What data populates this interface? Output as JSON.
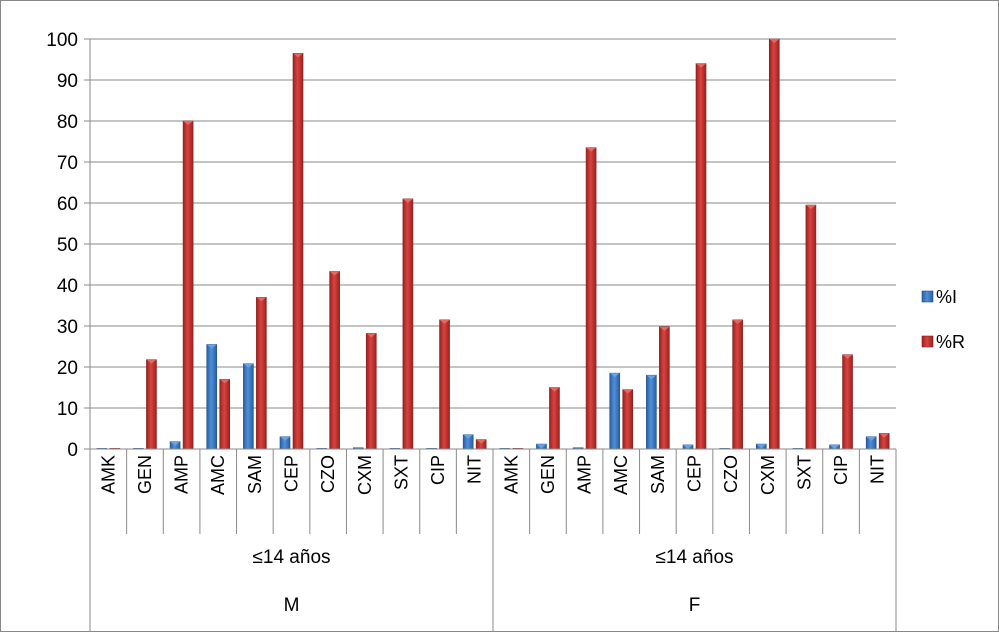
{
  "chart_data": {
    "type": "bar",
    "title": "",
    "xlabel": "",
    "ylabel": "",
    "ylim": [
      0,
      100
    ],
    "yticks": [
      0,
      10,
      20,
      30,
      40,
      50,
      60,
      70,
      80,
      90,
      100
    ],
    "grid": true,
    "legend_position": "right",
    "categories": [
      "AMK",
      "GEN",
      "AMP",
      "AMC",
      "SAM",
      "CEP",
      "CZO",
      "CXM",
      "SXT",
      "CIP",
      "NIT",
      "AMK",
      "GEN",
      "AMP",
      "AMC",
      "SAM",
      "CEP",
      "CZO",
      "CXM",
      "SXT",
      "CIP",
      "NIT"
    ],
    "groups": [
      {
        "level1": "≤14 años",
        "level2": "M",
        "span": 11
      },
      {
        "level1": "≤14 años",
        "level2": "F",
        "span": 11
      }
    ],
    "series": [
      {
        "name": "%I",
        "color": "#3A78C4",
        "values": [
          0,
          0,
          1.8,
          25.5,
          20.8,
          3.0,
          0,
          0.3,
          0,
          0,
          3.5,
          0.1,
          1.2,
          0.3,
          18.5,
          18.0,
          1.0,
          0,
          1.2,
          0,
          1.0,
          3.0
        ]
      },
      {
        "name": "%R",
        "color": "#C0302E",
        "values": [
          0,
          21.8,
          80.0,
          17.0,
          37.0,
          96.5,
          43.3,
          28.2,
          61.0,
          31.5,
          2.3,
          0.1,
          15.0,
          73.5,
          14.5,
          29.8,
          94.0,
          31.5,
          100,
          59.5,
          23.0,
          3.8
        ]
      }
    ]
  }
}
